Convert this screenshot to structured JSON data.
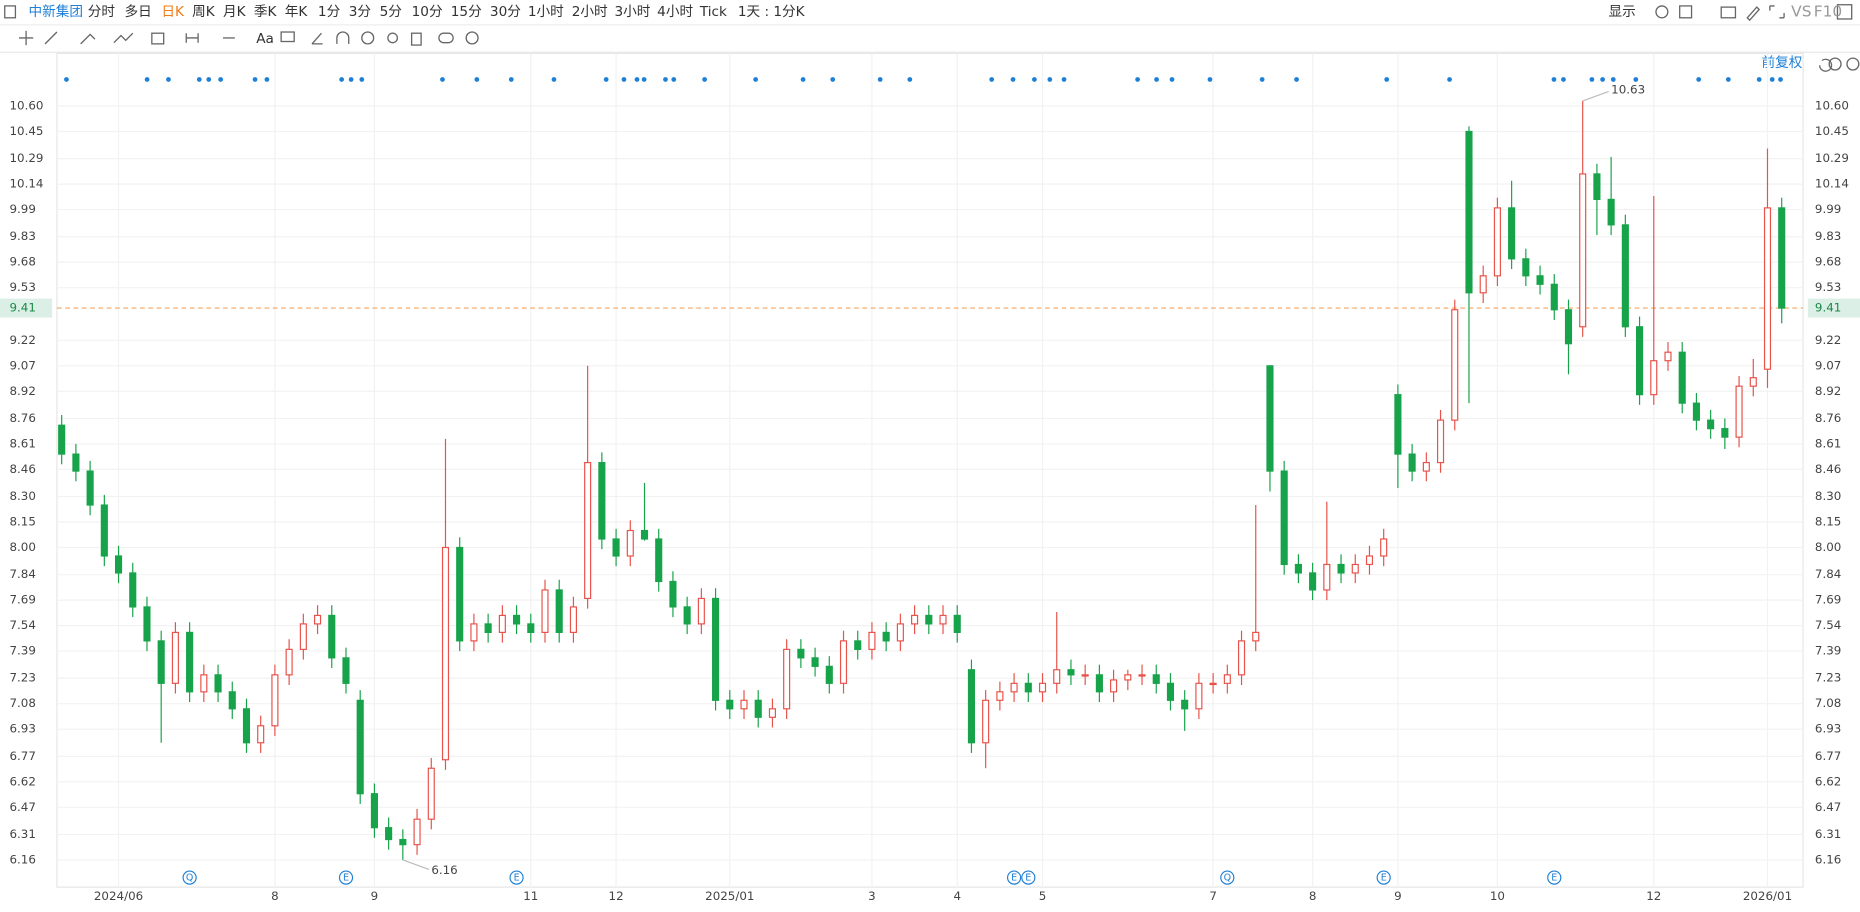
{
  "toolbar": {
    "stock": "中新集团",
    "periods": [
      "分时",
      "多日",
      "日K",
      "周K",
      "月K",
      "季K",
      "年K",
      "1分",
      "3分",
      "5分",
      "10分",
      "15分",
      "30分",
      "1小时",
      "2小时",
      "3小时",
      "4小时",
      "Tick"
    ],
    "active_period": "日K",
    "interval": "1天 : 1分K",
    "display": "显示",
    "compare": "VS",
    "f10": "F10",
    "adjust": "前复权"
  },
  "chart_data": {
    "type": "candlestick",
    "up_color": "#e8524a",
    "down_color": "#17a34a",
    "grid": true,
    "categories": [
      null,
      null,
      null,
      null,
      "2024/06",
      null,
      null,
      null,
      null,
      null,
      null,
      null,
      null,
      null,
      null,
      "8",
      null,
      null,
      null,
      null,
      null,
      null,
      "9",
      null,
      null,
      null,
      null,
      null,
      null,
      null,
      null,
      null,
      null,
      "11",
      null,
      null,
      null,
      null,
      null,
      "12",
      null,
      null,
      null,
      null,
      null,
      null,
      null,
      "2025/01",
      null,
      null,
      null,
      null,
      null,
      null,
      null,
      null,
      null,
      "3",
      null,
      null,
      null,
      null,
      null,
      "4",
      null,
      null,
      null,
      null,
      null,
      "5",
      null,
      null,
      null,
      null,
      null,
      null,
      null,
      null,
      null,
      null,
      null,
      "7",
      null,
      null,
      null,
      null,
      null,
      null,
      "8",
      null,
      null,
      null,
      null,
      null,
      "9",
      null,
      null,
      null,
      null,
      null,
      null,
      "10",
      null,
      null,
      null,
      null,
      null,
      null,
      null,
      null,
      null,
      null,
      "12",
      null,
      null,
      null,
      null,
      null,
      null,
      null,
      "2026/01",
      null
    ],
    "open": [
      8.72,
      8.55,
      8.45,
      8.25,
      7.95,
      7.85,
      7.65,
      7.45,
      7.2,
      7.5,
      7.15,
      7.25,
      7.15,
      7.05,
      6.85,
      6.95,
      7.25,
      7.4,
      7.55,
      7.6,
      7.35,
      7.1,
      6.55,
      6.35,
      6.28,
      6.25,
      6.4,
      6.75,
      8.0,
      7.45,
      7.55,
      7.5,
      7.6,
      7.55,
      7.5,
      7.75,
      7.5,
      7.7,
      8.5,
      8.05,
      7.95,
      8.1,
      8.05,
      7.8,
      7.65,
      7.55,
      7.7,
      7.1,
      7.05,
      7.1,
      7.0,
      7.05,
      7.4,
      7.35,
      7.3,
      7.2,
      7.45,
      7.4,
      7.5,
      7.45,
      7.55,
      7.6,
      7.55,
      7.6,
      7.28,
      6.85,
      7.1,
      7.15,
      7.2,
      7.15,
      7.2,
      7.28,
      7.25,
      7.25,
      7.15,
      7.22,
      7.25,
      7.25,
      7.2,
      7.1,
      7.05,
      7.2,
      7.2,
      7.25,
      7.45,
      9.07,
      8.45,
      7.9,
      7.85,
      7.75,
      7.9,
      7.85,
      7.9,
      7.95,
      8.9,
      8.55,
      8.45,
      8.5,
      8.75,
      10.45,
      9.5,
      9.6,
      10.0,
      9.7,
      9.6,
      9.55,
      9.4,
      9.3,
      10.2,
      10.05,
      9.9,
      9.3,
      8.9,
      9.1,
      9.15,
      8.85,
      8.75,
      8.7,
      8.65,
      8.95,
      9.05,
      10.0
    ],
    "high": [
      8.78,
      8.61,
      8.51,
      8.31,
      8.01,
      7.91,
      7.71,
      7.51,
      7.56,
      7.56,
      7.31,
      7.31,
      7.21,
      7.11,
      7.01,
      7.31,
      7.46,
      7.61,
      7.66,
      7.66,
      7.41,
      7.16,
      6.61,
      6.41,
      6.34,
      6.46,
      6.76,
      8.64,
      8.06,
      7.61,
      7.61,
      7.66,
      7.66,
      7.61,
      7.81,
      7.81,
      7.71,
      9.07,
      8.56,
      8.11,
      8.16,
      8.38,
      8.11,
      7.86,
      7.71,
      7.76,
      7.76,
      7.16,
      7.16,
      7.16,
      7.11,
      7.46,
      7.46,
      7.41,
      7.36,
      7.51,
      7.51,
      7.56,
      7.56,
      7.61,
      7.66,
      7.66,
      7.66,
      7.66,
      7.34,
      7.16,
      7.21,
      7.26,
      7.26,
      7.26,
      7.62,
      7.34,
      7.31,
      7.31,
      7.28,
      7.28,
      7.31,
      7.31,
      7.26,
      7.16,
      7.26,
      7.26,
      7.31,
      7.51,
      8.25,
      9.07,
      8.51,
      7.96,
      7.91,
      8.27,
      7.96,
      7.96,
      8.01,
      8.11,
      8.96,
      8.61,
      8.56,
      8.81,
      9.46,
      10.48,
      9.66,
      10.06,
      10.16,
      9.76,
      9.66,
      9.61,
      9.46,
      10.63,
      10.26,
      10.3,
      9.96,
      9.36,
      10.07,
      9.21,
      9.21,
      8.91,
      8.81,
      8.76,
      9.01,
      9.11,
      10.35,
      10.06
    ],
    "low": [
      8.49,
      8.39,
      8.19,
      7.89,
      7.79,
      7.59,
      7.39,
      6.85,
      7.14,
      7.09,
      7.09,
      7.09,
      6.99,
      6.79,
      6.79,
      6.89,
      7.19,
      7.34,
      7.49,
      7.29,
      7.14,
      6.49,
      6.29,
      6.22,
      6.16,
      6.19,
      6.34,
      6.69,
      7.39,
      7.39,
      7.44,
      7.44,
      7.49,
      7.44,
      7.44,
      7.44,
      7.44,
      7.64,
      7.99,
      7.89,
      7.89,
      8.04,
      7.74,
      7.59,
      7.49,
      7.49,
      7.04,
      6.99,
      6.99,
      6.94,
      6.94,
      6.99,
      7.29,
      7.24,
      7.14,
      7.14,
      7.34,
      7.34,
      7.39,
      7.39,
      7.49,
      7.49,
      7.49,
      7.44,
      6.79,
      6.7,
      7.04,
      7.09,
      7.09,
      7.09,
      7.14,
      7.19,
      7.19,
      7.09,
      7.09,
      7.16,
      7.19,
      7.14,
      7.04,
      6.92,
      6.99,
      7.14,
      7.14,
      7.19,
      7.39,
      8.33,
      7.84,
      7.79,
      7.69,
      7.69,
      7.79,
      7.79,
      7.84,
      7.89,
      8.35,
      8.39,
      8.39,
      8.44,
      8.69,
      8.85,
      9.44,
      9.54,
      9.64,
      9.54,
      9.49,
      9.34,
      9.02,
      9.24,
      9.84,
      9.84,
      9.24,
      8.84,
      8.84,
      9.04,
      8.79,
      8.69,
      8.64,
      8.58,
      8.59,
      8.89,
      8.94,
      9.32
    ],
    "close": [
      8.55,
      8.45,
      8.25,
      7.95,
      7.85,
      7.65,
      7.45,
      7.2,
      7.5,
      7.15,
      7.25,
      7.15,
      7.05,
      6.85,
      6.95,
      7.25,
      7.4,
      7.55,
      7.6,
      7.35,
      7.2,
      6.55,
      6.35,
      6.28,
      6.25,
      6.4,
      6.7,
      8.0,
      7.45,
      7.55,
      7.5,
      7.6,
      7.55,
      7.5,
      7.75,
      7.5,
      7.65,
      8.5,
      8.05,
      7.95,
      8.1,
      8.05,
      7.8,
      7.65,
      7.55,
      7.7,
      7.1,
      7.05,
      7.1,
      7.0,
      7.05,
      7.4,
      7.35,
      7.3,
      7.2,
      7.45,
      7.4,
      7.5,
      7.45,
      7.55,
      7.6,
      7.55,
      7.6,
      7.5,
      6.85,
      7.1,
      7.15,
      7.2,
      7.15,
      7.2,
      7.28,
      7.25,
      7.25,
      7.15,
      7.22,
      7.25,
      7.25,
      7.2,
      7.1,
      7.05,
      7.2,
      7.2,
      7.25,
      7.45,
      7.5,
      8.45,
      7.9,
      7.85,
      7.75,
      7.9,
      7.85,
      7.9,
      7.95,
      8.05,
      8.55,
      8.45,
      8.5,
      8.75,
      9.4,
      9.5,
      9.6,
      10.0,
      9.7,
      9.6,
      9.55,
      9.4,
      9.2,
      10.2,
      10.05,
      9.9,
      9.3,
      8.9,
      9.1,
      9.15,
      8.85,
      8.75,
      8.7,
      8.65,
      8.95,
      9.0,
      10.0,
      9.41
    ],
    "current_price": 9.41,
    "ylim": [
      6.0,
      10.91
    ],
    "yticks": [
      {
        "value": 10.6,
        "label": "10.60"
      },
      10.45,
      10.29,
      10.14,
      9.99,
      9.83,
      9.68,
      9.53,
      9.22,
      9.07,
      8.92,
      8.76,
      8.61,
      8.46,
      {
        "value": 8.3,
        "label": "8.30"
      },
      8.15,
      {
        "value": 8,
        "label": "8.00"
      },
      7.84,
      7.69,
      7.54,
      7.39,
      7.23,
      7.08,
      6.93,
      6.77,
      6.62,
      6.47,
      6.31,
      6.16
    ],
    "events": [
      {
        "label": "Q",
        "at": 9
      },
      {
        "label": "E",
        "at": 20
      },
      {
        "label": "E",
        "at": 32
      },
      {
        "label": "E",
        "at": 67
      },
      {
        "label": "E",
        "at": 68
      },
      {
        "label": "Q",
        "at": 82
      },
      {
        "label": "E",
        "at": 93
      },
      {
        "label": "E",
        "at": 105
      }
    ]
  }
}
